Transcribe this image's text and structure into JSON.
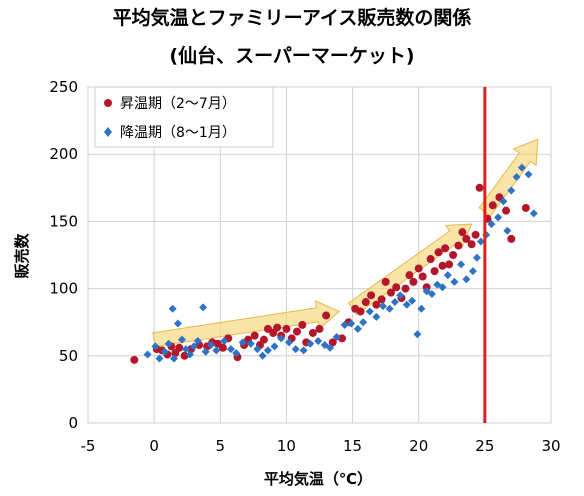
{
  "chart_data": {
    "type": "scatter",
    "title": "平均気温とファミリーアイス販売数の関係",
    "subtitle": "(仙台、スーパーマーケット)",
    "xlabel": "平均気温（℃）",
    "ylabel": "販売数",
    "xlim": [
      -5,
      30
    ],
    "ylim": [
      0,
      250
    ],
    "xticks": [
      "-5",
      "0",
      "5",
      "10",
      "15",
      "20",
      "25",
      "30"
    ],
    "yticks": [
      "0",
      "50",
      "100",
      "150",
      "200",
      "250"
    ],
    "grid": true,
    "legend_position": "top-left",
    "reference_line": {
      "x": 25,
      "color": "#e0201e"
    },
    "trend_arrow_color": "#f7d36e",
    "trend_arrows": [
      {
        "from": [
          0,
          62
        ],
        "to": [
          14,
          83
        ]
      },
      {
        "from": [
          15,
          85
        ],
        "to": [
          24,
          148
        ]
      },
      {
        "from": [
          25,
          157
        ],
        "to": [
          29,
          211
        ]
      }
    ],
    "series": [
      {
        "name": "昇温期（2～7月）",
        "color": "#b5172a",
        "marker": "circle",
        "points": [
          [
            -1.5,
            47
          ],
          [
            0.2,
            55
          ],
          [
            0.6,
            54
          ],
          [
            1.0,
            51
          ],
          [
            1.3,
            57
          ],
          [
            1.6,
            52
          ],
          [
            1.9,
            56
          ],
          [
            2.3,
            50
          ],
          [
            2.8,
            55
          ],
          [
            3.4,
            58
          ],
          [
            4.0,
            57
          ],
          [
            4.4,
            60
          ],
          [
            4.8,
            59
          ],
          [
            5.2,
            56
          ],
          [
            5.6,
            63
          ],
          [
            6.3,
            49
          ],
          [
            6.8,
            58
          ],
          [
            7.1,
            62
          ],
          [
            7.6,
            65
          ],
          [
            8.0,
            58
          ],
          [
            8.3,
            62
          ],
          [
            8.6,
            70
          ],
          [
            9.0,
            67
          ],
          [
            9.3,
            71
          ],
          [
            9.6,
            65
          ],
          [
            10.0,
            70
          ],
          [
            10.4,
            63
          ],
          [
            10.8,
            68
          ],
          [
            11.2,
            73
          ],
          [
            11.5,
            60
          ],
          [
            12.0,
            67
          ],
          [
            12.5,
            70
          ],
          [
            13.0,
            80
          ],
          [
            13.5,
            60
          ],
          [
            14.2,
            63
          ],
          [
            14.7,
            75
          ],
          [
            15.2,
            85
          ],
          [
            15.6,
            83
          ],
          [
            16.0,
            90
          ],
          [
            16.4,
            95
          ],
          [
            16.8,
            88
          ],
          [
            17.2,
            92
          ],
          [
            17.5,
            105
          ],
          [
            17.9,
            97
          ],
          [
            18.3,
            101
          ],
          [
            18.7,
            93
          ],
          [
            19.0,
            100
          ],
          [
            19.3,
            110
          ],
          [
            19.6,
            105
          ],
          [
            20.0,
            115
          ],
          [
            20.3,
            109
          ],
          [
            20.6,
            101
          ],
          [
            20.9,
            122
          ],
          [
            21.2,
            113
          ],
          [
            21.5,
            127
          ],
          [
            21.8,
            117
          ],
          [
            22.0,
            130
          ],
          [
            22.3,
            118
          ],
          [
            22.6,
            125
          ],
          [
            23.0,
            132
          ],
          [
            23.3,
            142
          ],
          [
            23.6,
            137
          ],
          [
            24.0,
            133
          ],
          [
            24.3,
            140
          ],
          [
            24.6,
            175
          ],
          [
            25.2,
            152
          ],
          [
            25.6,
            162
          ],
          [
            26.1,
            168
          ],
          [
            26.6,
            158
          ],
          [
            27.0,
            137
          ],
          [
            28.1,
            160
          ]
        ]
      },
      {
        "name": "降温期（8～1月）",
        "color": "#2e73c4",
        "marker": "diamond",
        "points": [
          [
            -0.5,
            51
          ],
          [
            0.1,
            57
          ],
          [
            0.4,
            48
          ],
          [
            0.8,
            53
          ],
          [
            1.1,
            59
          ],
          [
            1.4,
            85
          ],
          [
            1.5,
            48
          ],
          [
            1.8,
            74
          ],
          [
            2.1,
            62
          ],
          [
            2.4,
            55
          ],
          [
            2.7,
            51
          ],
          [
            3.0,
            57
          ],
          [
            3.3,
            61
          ],
          [
            3.7,
            86
          ],
          [
            3.9,
            53
          ],
          [
            4.3,
            58
          ],
          [
            4.7,
            54
          ],
          [
            5.3,
            61
          ],
          [
            5.8,
            55
          ],
          [
            6.2,
            52
          ],
          [
            6.7,
            60
          ],
          [
            7.3,
            59
          ],
          [
            7.8,
            55
          ],
          [
            8.2,
            50
          ],
          [
            8.6,
            54
          ],
          [
            9.1,
            57
          ],
          [
            9.6,
            63
          ],
          [
            10.2,
            60
          ],
          [
            10.7,
            55
          ],
          [
            11.3,
            54
          ],
          [
            11.8,
            59
          ],
          [
            12.4,
            61
          ],
          [
            12.9,
            58
          ],
          [
            13.3,
            56
          ],
          [
            13.8,
            64
          ],
          [
            14.4,
            73
          ],
          [
            14.9,
            74
          ],
          [
            15.4,
            70
          ],
          [
            15.8,
            75
          ],
          [
            16.3,
            83
          ],
          [
            16.8,
            79
          ],
          [
            17.3,
            87
          ],
          [
            17.8,
            85
          ],
          [
            18.2,
            90
          ],
          [
            18.6,
            95
          ],
          [
            19.1,
            88
          ],
          [
            19.5,
            91
          ],
          [
            19.9,
            66
          ],
          [
            20.2,
            85
          ],
          [
            20.6,
            98
          ],
          [
            21.0,
            96
          ],
          [
            21.4,
            103
          ],
          [
            21.8,
            101
          ],
          [
            22.2,
            110
          ],
          [
            22.7,
            105
          ],
          [
            23.2,
            118
          ],
          [
            23.6,
            107
          ],
          [
            24.1,
            113
          ],
          [
            24.4,
            123
          ],
          [
            24.7,
            135
          ],
          [
            25.1,
            140
          ],
          [
            25.5,
            148
          ],
          [
            26.0,
            153
          ],
          [
            26.4,
            165
          ],
          [
            26.7,
            143
          ],
          [
            27.0,
            173
          ],
          [
            27.4,
            183
          ],
          [
            27.8,
            190
          ],
          [
            28.3,
            185
          ],
          [
            28.7,
            156
          ]
        ]
      }
    ]
  }
}
